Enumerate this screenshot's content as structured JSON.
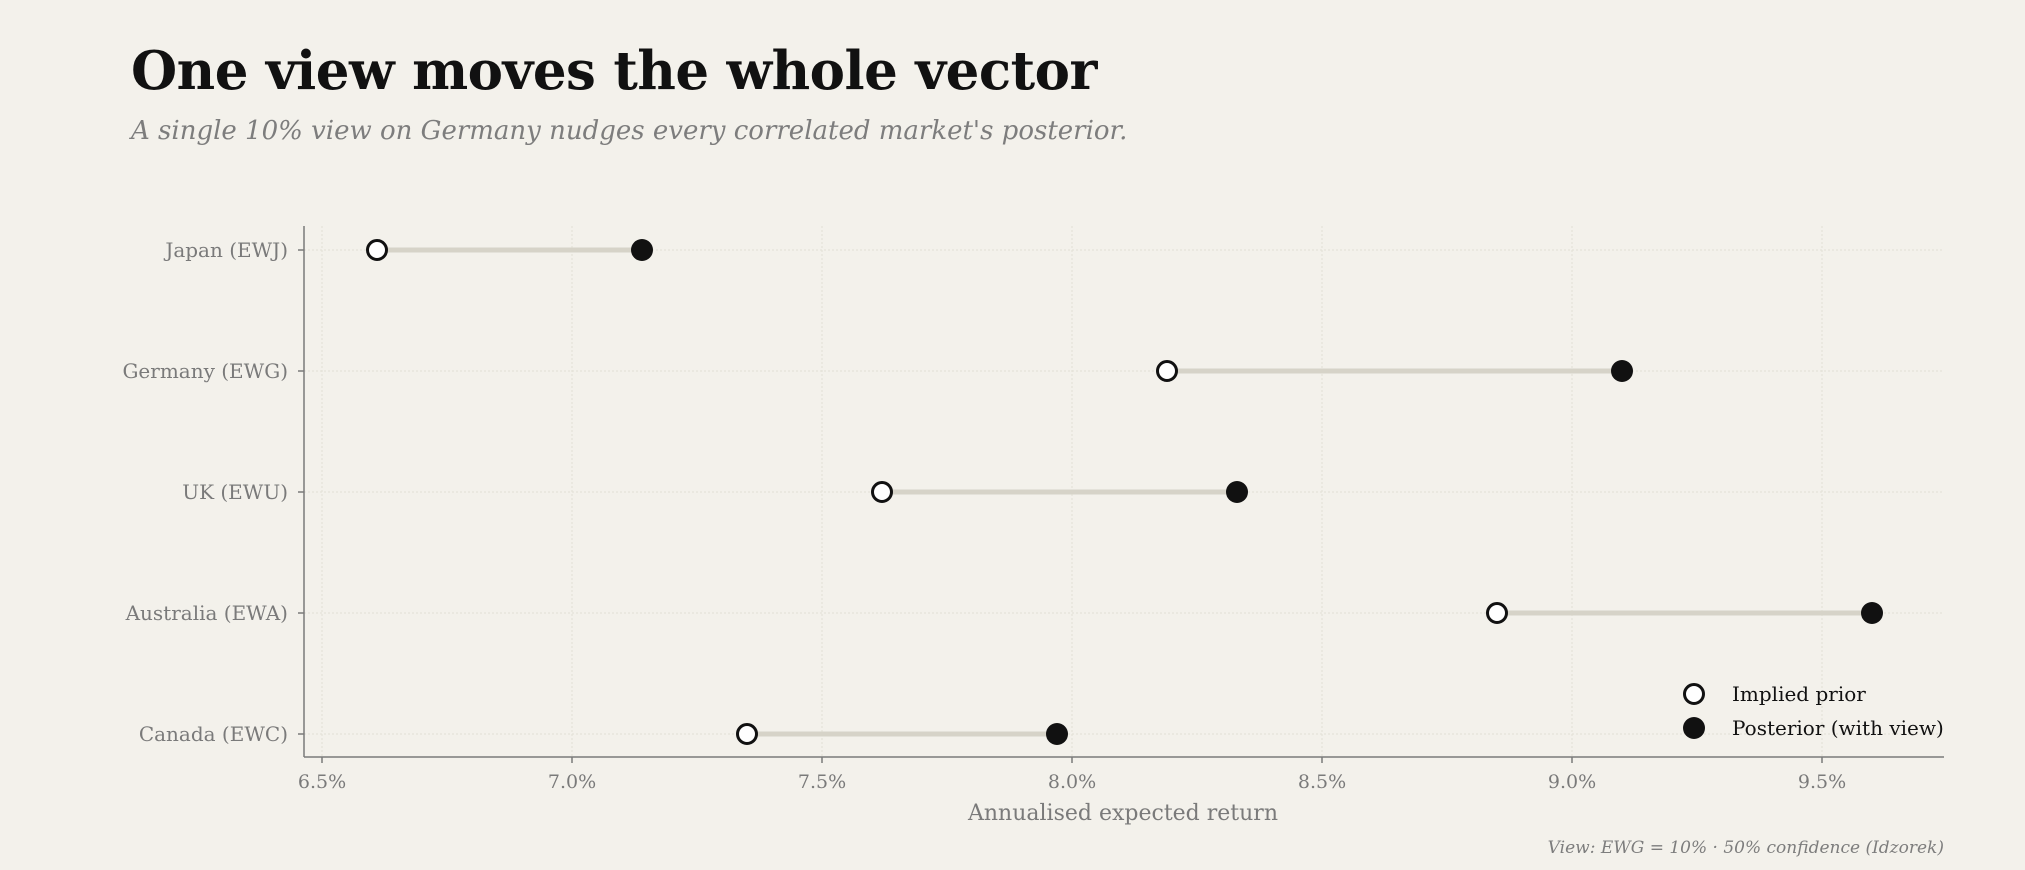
{
  "header": {
    "title": "One view moves the whole vector",
    "subtitle": "A single 10% view on Germany nudges every correlated market's posterior."
  },
  "footnote": "View: EWG = 10%  ·  50% confidence (Idzorek)",
  "colors": {
    "background": "#f3f1eb",
    "connector": "#d6d3c8",
    "marker": "#111111",
    "grid": "#e2dfd6",
    "axis": "#7a7a7a"
  },
  "chart_data": {
    "type": "dumbbell",
    "xlabel": "Annualised expected return",
    "xlim": [
      6.45,
      9.75
    ],
    "xticks": [
      6.5,
      7.0,
      7.5,
      8.0,
      8.5,
      9.0,
      9.5
    ],
    "xtick_labels": [
      "6.5%",
      "7.0%",
      "7.5%",
      "8.0%",
      "8.5%",
      "9.0%",
      "9.5%"
    ],
    "grid": true,
    "legend_position": "bottom-right",
    "categories": [
      "Japan  (EWJ)",
      "Germany  (EWG)",
      "UK  (EWU)",
      "Australia  (EWA)",
      "Canada  (EWC)"
    ],
    "series": [
      {
        "name": "Implied prior",
        "marker": "open-circle",
        "values": [
          6.61,
          8.19,
          7.62,
          8.85,
          7.35
        ]
      },
      {
        "name": "Posterior (with view)",
        "marker": "filled-circle",
        "values": [
          7.14,
          9.1,
          8.33,
          9.6,
          7.97
        ]
      }
    ]
  }
}
